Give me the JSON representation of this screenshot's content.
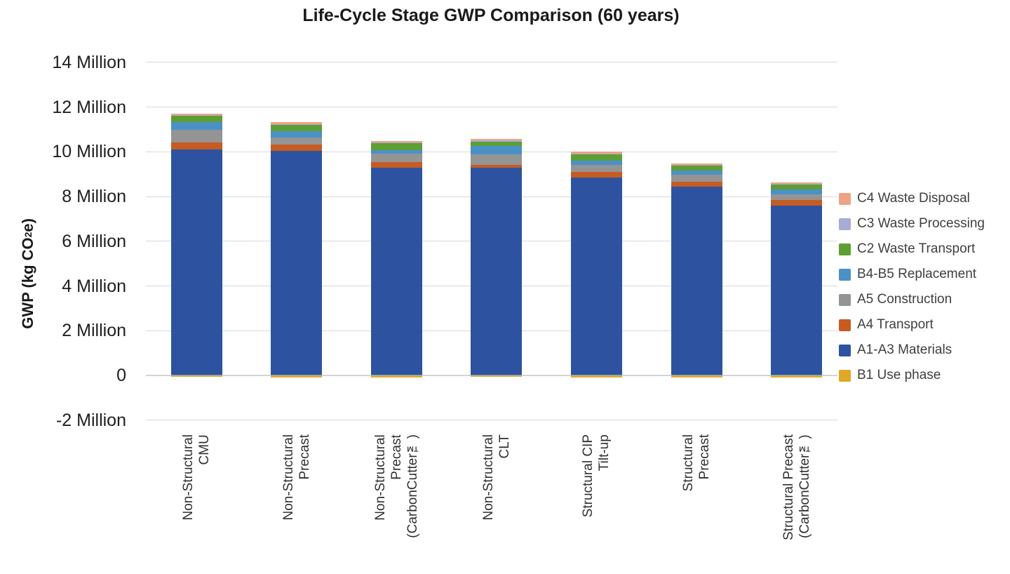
{
  "chart_data": {
    "type": "bar",
    "stacked": true,
    "title": "Life-Cycle Stage GWP Comparison (60 years)",
    "y_axis": {
      "title_prefix": "GWP (kg CO",
      "title_sub": "2",
      "title_suffix": "e)",
      "title_text": "GWP (kg CO₂e)",
      "ylim": [
        -2000000,
        14000000
      ],
      "gridline_color": "#d9d9d9",
      "yticks": [
        {
          "value": 14000000,
          "label": "14 Million"
        },
        {
          "value": 12000000,
          "label": "12 Million"
        },
        {
          "value": 10000000,
          "label": "10 Million"
        },
        {
          "value": 8000000,
          "label": "8 Million"
        },
        {
          "value": 6000000,
          "label": "6 Million"
        },
        {
          "value": 4000000,
          "label": "4 Million"
        },
        {
          "value": 2000000,
          "label": "2 Million"
        },
        {
          "value": 0,
          "label": "0"
        },
        {
          "value": -2000000,
          "label": "-2 Million"
        }
      ]
    },
    "categories": [
      {
        "id": "ns-cmu",
        "lines": [
          "Non-Structural",
          "CMU"
        ]
      },
      {
        "id": "ns-precast",
        "lines": [
          "Non-Structural",
          "Precast"
        ]
      },
      {
        "id": "ns-precast-cc",
        "lines": [
          "Non-Structural",
          "Precast",
          "(CarbonCutter™)"
        ]
      },
      {
        "id": "ns-clt",
        "lines": [
          "Non-Structural",
          "CLT"
        ]
      },
      {
        "id": "s-cip-tiltup",
        "lines": [
          "Structural CIP",
          "Tilt-up"
        ]
      },
      {
        "id": "s-precast",
        "lines": [
          "Structural",
          "Precast"
        ]
      },
      {
        "id": "s-precast-cc",
        "lines": [
          "Structural Precast",
          "(CarbonCutter™)"
        ]
      }
    ],
    "series": [
      {
        "id": "b1",
        "name": "B1 Use phase",
        "color": "#DEA927",
        "values": [
          -50000,
          -80000,
          -100000,
          -60000,
          -100000,
          -100000,
          -100000
        ]
      },
      {
        "id": "a1a3",
        "name": "A1-A3 Materials",
        "color": "#2D53A0",
        "values": [
          10100000,
          10050000,
          9280000,
          9280000,
          8850000,
          8440000,
          7580000
        ]
      },
      {
        "id": "a4",
        "name": "A4 Transport",
        "color": "#C75B21",
        "values": [
          310000,
          260000,
          260000,
          130000,
          260000,
          210000,
          260000
        ]
      },
      {
        "id": "a5",
        "name": "A5 Construction",
        "color": "#949494",
        "values": [
          560000,
          310000,
          360000,
          470000,
          310000,
          310000,
          260000
        ]
      },
      {
        "id": "b4b5",
        "name": "B4-B5 Replacement",
        "color": "#4B91C7",
        "values": [
          370000,
          310000,
          170000,
          370000,
          170000,
          210000,
          210000
        ]
      },
      {
        "id": "c2",
        "name": "C2 Waste Transport",
        "color": "#5D9F33",
        "values": [
          280000,
          280000,
          330000,
          190000,
          280000,
          210000,
          240000
        ]
      },
      {
        "id": "c3",
        "name": "C3 Waste Processing",
        "color": "#A9ABD6",
        "values": [
          30000,
          30000,
          20000,
          60000,
          30000,
          30000,
          20000
        ]
      },
      {
        "id": "c4",
        "name": "C4 Waste Disposal",
        "color": "#EFA284",
        "values": [
          60000,
          80000,
          60000,
          80000,
          100000,
          60000,
          50000
        ]
      }
    ],
    "legend": {
      "position": "right",
      "order": [
        "c4",
        "c3",
        "c2",
        "b4b5",
        "a5",
        "a4",
        "a1a3",
        "b1"
      ]
    }
  }
}
